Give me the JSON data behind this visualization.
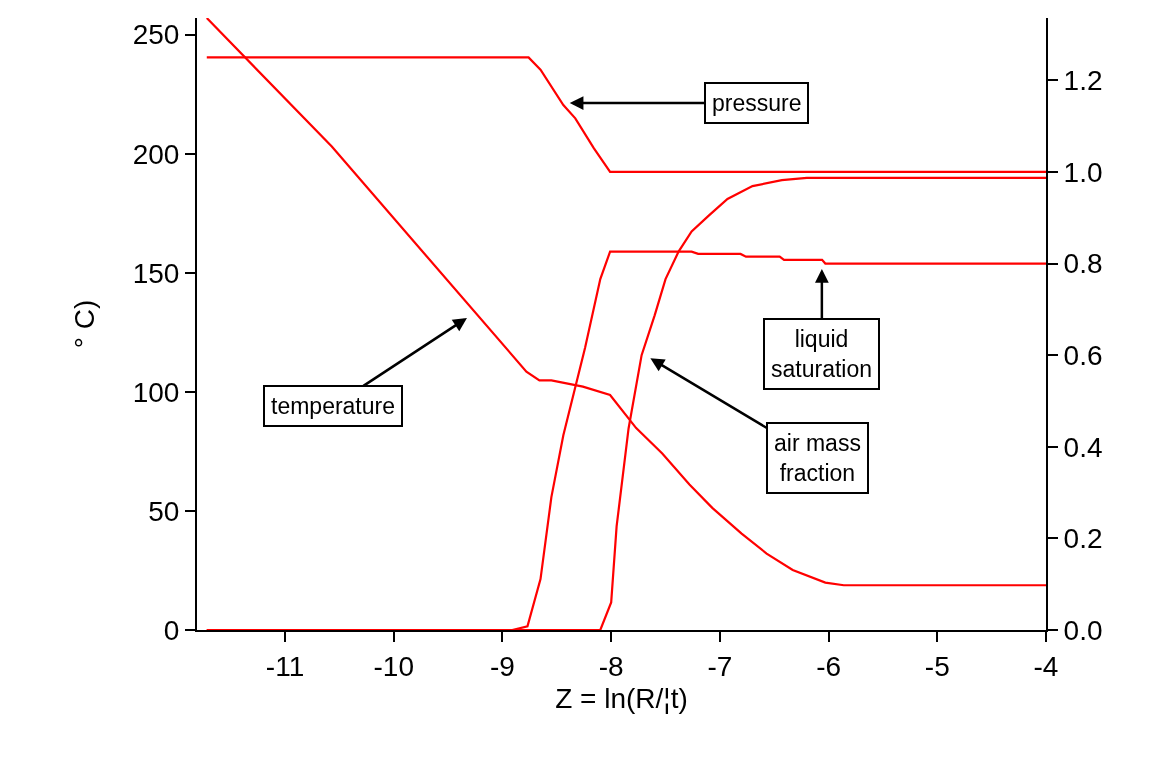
{
  "chart_data": {
    "type": "line",
    "xlabel": "Z = ln(R/¦t)",
    "ylabel": "° C)",
    "xlim": [
      -11.81,
      -4
    ],
    "xticks": [
      -11,
      -10,
      -9,
      -8,
      -7,
      -6,
      -5,
      -4
    ],
    "ylim": [
      0,
      257
    ],
    "yticks": [
      0,
      50,
      100,
      150,
      200,
      250
    ],
    "y2lim": [
      0,
      1.336
    ],
    "y2ticks": [
      {
        "value": 0,
        "label": "0.0"
      },
      {
        "value": 0.2,
        "label": "0.2"
      },
      {
        "value": 0.4,
        "label": "0.4"
      },
      {
        "value": 0.6,
        "label": "0.6"
      },
      {
        "value": 0.8,
        "label": "0.8"
      },
      {
        "value": 1.0,
        "label": "1.0"
      },
      {
        "value": 1.2,
        "label": "1.2"
      }
    ],
    "legend": false,
    "marker": "none",
    "line_style": "solid",
    "series": [
      {
        "color": "#ff0000",
        "x": [
          -11.72,
          -10.57,
          -8.78,
          -8.66,
          -8.55,
          -8.26,
          -8.01,
          -7.77,
          -7.53,
          -7.28,
          -7.07,
          -6.8,
          -6.57,
          -6.33,
          -6.03,
          -5.86,
          -4
        ],
        "values": [
          257,
          203,
          108.5,
          104.8,
          104.8,
          102.2,
          98.7,
          84.8,
          74.1,
          61.1,
          51.3,
          40.5,
          32.1,
          25.2,
          19.9,
          18.8,
          18.8
        ]
      },
      {
        "color": "#ff0000",
        "axis": "y2",
        "x": [
          -11.72,
          -8.76,
          -8.65,
          -8.44,
          -8.33,
          -8.16,
          -8.01,
          -4
        ],
        "values": [
          1.25,
          1.25,
          1.223,
          1.146,
          1.117,
          1.052,
          1.0,
          1.0
        ]
      },
      {
        "color": "#ff0000",
        "axis": "y2",
        "x": [
          -11.72,
          -8.91,
          -8.77,
          -8.65,
          -8.55,
          -8.44,
          -8.24,
          -8.1,
          -8.01,
          -7.26,
          -7.2,
          -6.81,
          -6.76,
          -6.45,
          -6.41,
          -6.06,
          -6.03,
          -4
        ],
        "values": [
          0,
          0,
          0.008,
          0.111,
          0.29,
          0.425,
          0.616,
          0.766,
          0.826,
          0.826,
          0.821,
          0.821,
          0.815,
          0.815,
          0.808,
          0.808,
          0.8,
          0.8
        ]
      },
      {
        "color": "#ff0000",
        "axis": "y2",
        "x": [
          -11.72,
          -8.1,
          -8.0,
          -7.95,
          -7.84,
          -7.72,
          -7.6,
          -7.5,
          -7.38,
          -7.26,
          -7.1,
          -6.93,
          -6.7,
          -6.43,
          -6.2,
          -4
        ],
        "values": [
          0,
          0,
          0.06,
          0.226,
          0.44,
          0.6,
          0.687,
          0.766,
          0.826,
          0.87,
          0.905,
          0.941,
          0.969,
          0.982,
          0.987,
          0.987
        ]
      }
    ],
    "annotations": [
      "pressure",
      "temperature",
      "liquid\nsaturation",
      "air mass\nfraction"
    ]
  }
}
